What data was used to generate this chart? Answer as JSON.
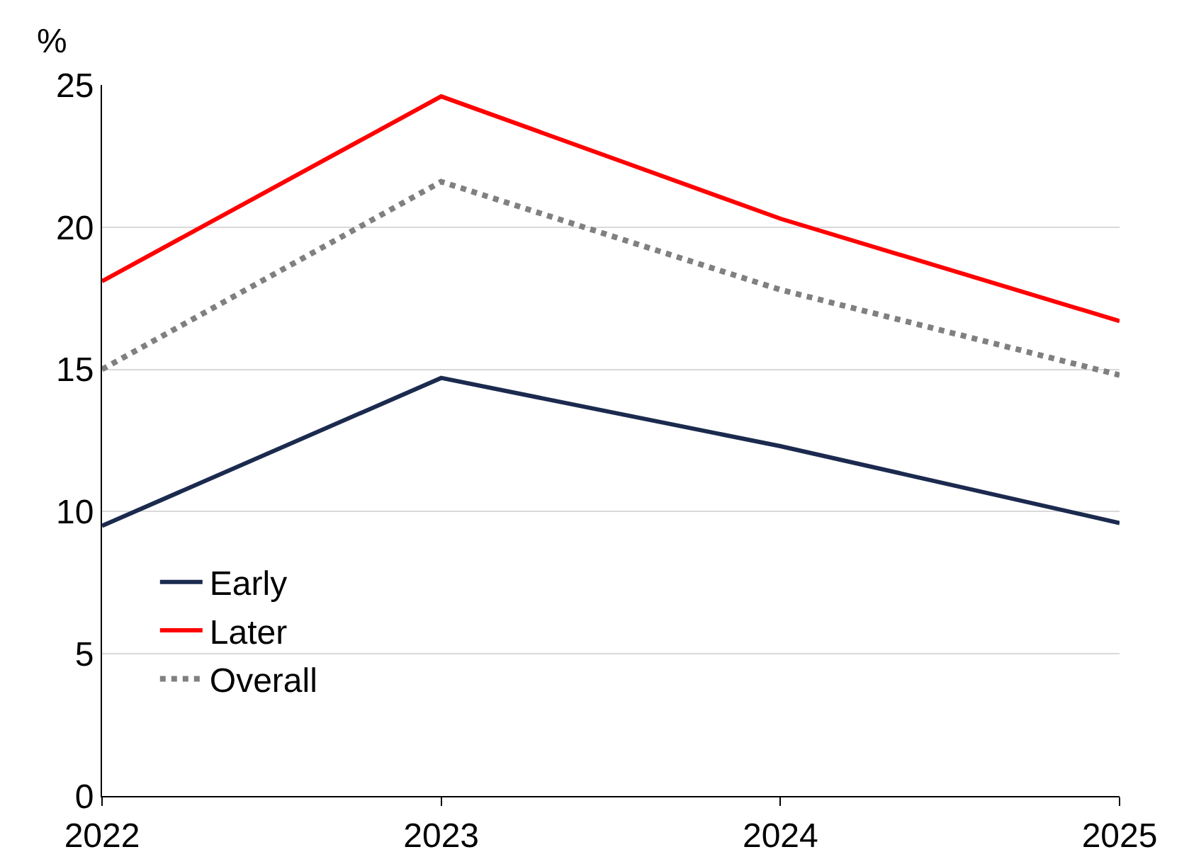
{
  "chart_data": {
    "type": "line",
    "ylabel": "%",
    "x": [
      2022,
      2023,
      2024,
      2025
    ],
    "series": [
      {
        "name": "Early",
        "color": "#1b2a4e",
        "values": [
          9.5,
          14.7,
          12.3,
          9.6
        ],
        "line_style": "solid"
      },
      {
        "name": "Later",
        "color": "#ff0000",
        "values": [
          18.1,
          24.6,
          20.3,
          16.7
        ],
        "line_style": "solid"
      },
      {
        "name": "Overall",
        "color": "#808080",
        "values": [
          15.0,
          21.6,
          17.8,
          14.8
        ],
        "line_style": "dotted"
      }
    ],
    "xlim": [
      2022,
      2025
    ],
    "xticks": [
      2022,
      2023,
      2024,
      2025
    ],
    "ylim": [
      0,
      25
    ],
    "yticks": [
      0,
      5,
      10,
      15,
      20,
      25
    ],
    "grid": "y",
    "legend": "bottom left",
    "marker": "none"
  }
}
